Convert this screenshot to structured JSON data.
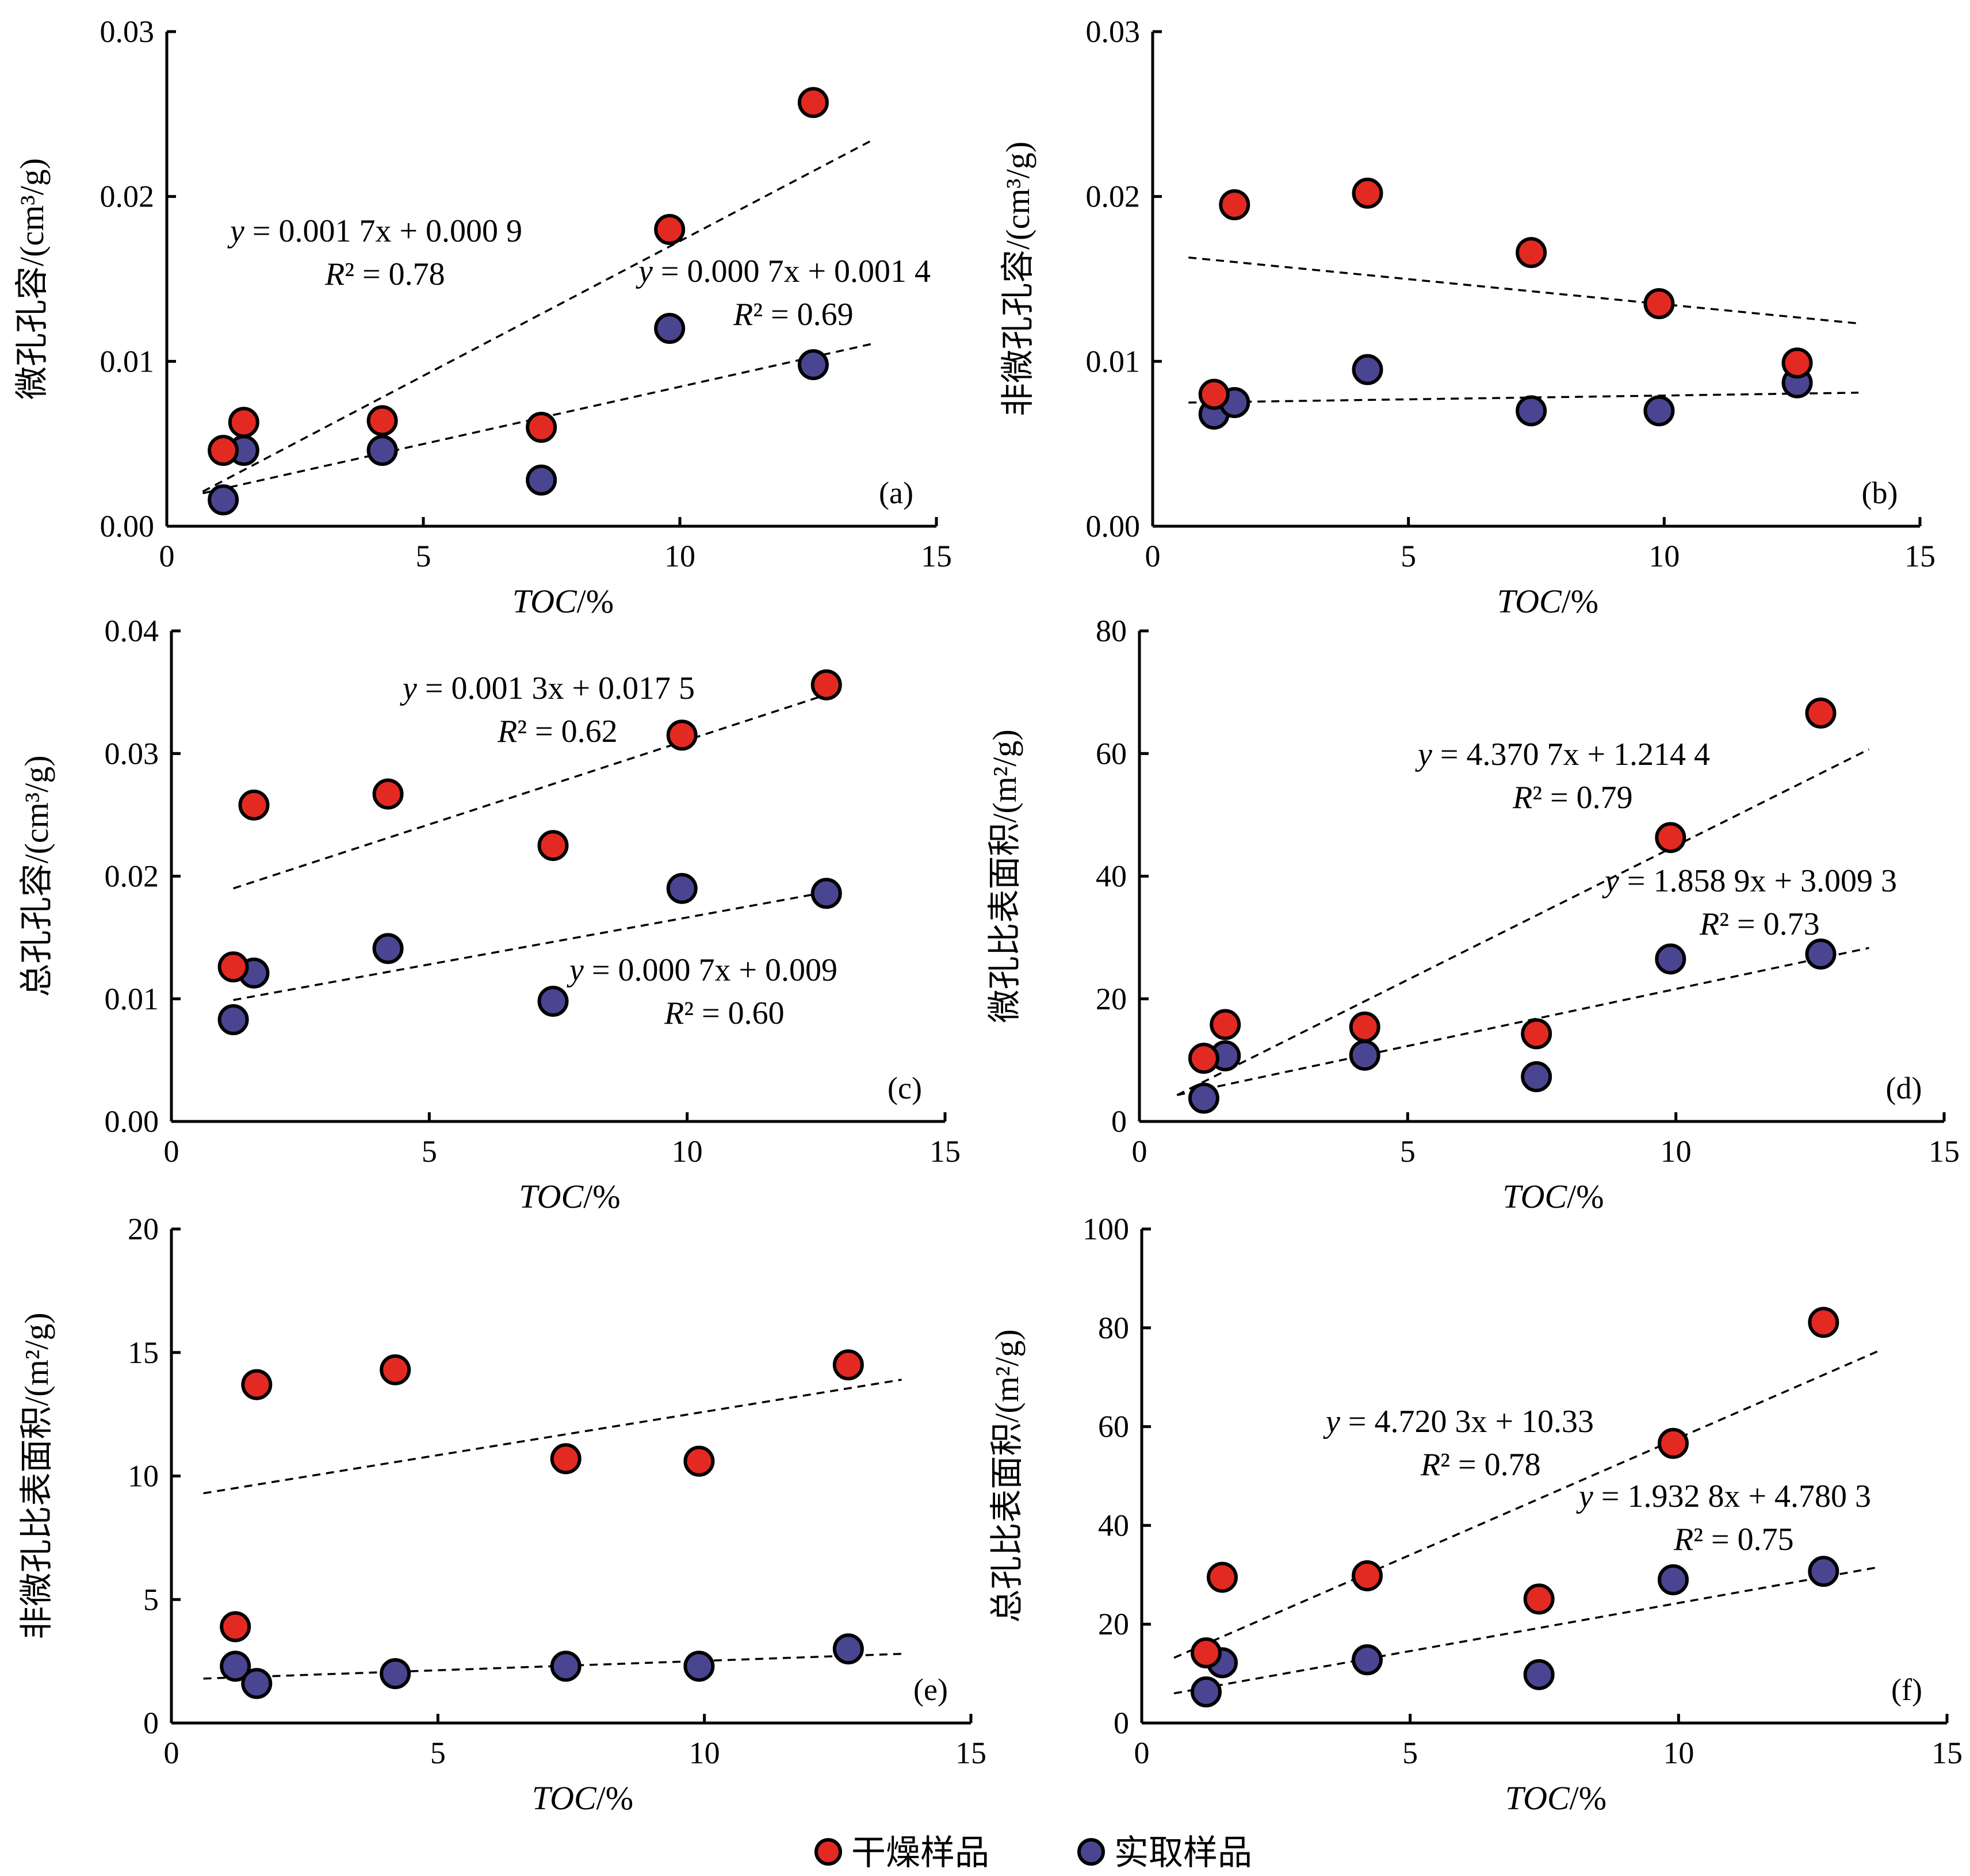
{
  "colors": {
    "dry": "#e32a22",
    "fresh": "#4a4591"
  },
  "legend": {
    "items": [
      {
        "label": "干燥样品",
        "color": "#e32a22"
      },
      {
        "label": "实取样品",
        "color": "#4a4591"
      }
    ]
  },
  "chart_data": [
    {
      "type": "scatter",
      "panel": "(a)",
      "xlabel": "TOC/%",
      "ylabel": "微孔孔容/(cm³/g)",
      "xlim": [
        0,
        15
      ],
      "ylim": [
        0,
        0.03
      ],
      "xticks": [
        0,
        5,
        10,
        15
      ],
      "yticks": [
        0,
        0.01,
        0.02,
        0.03
      ],
      "ytick_labels": [
        "0.00",
        "0.01",
        "0.02",
        "0.03"
      ],
      "series": [
        {
          "name": "干燥样品",
          "x": [
            1.1,
            1.5,
            4.2,
            7.3,
            9.8,
            12.6
          ],
          "y": [
            0.0046,
            0.0063,
            0.0064,
            0.006,
            0.018,
            0.0257
          ]
        },
        {
          "name": "实取样品",
          "x": [
            1.1,
            1.5,
            4.2,
            7.3,
            9.8,
            12.6
          ],
          "y": [
            0.0016,
            0.0046,
            0.0046,
            0.0028,
            0.012,
            0.0098
          ]
        }
      ],
      "annotations": [
        {
          "series": "干燥样品",
          "equation": "y = 0.001 7x + 0.000 9",
          "r2": "R² = 0.78"
        },
        {
          "series": "实取样品",
          "equation": "y = 0.000 7x + 0.001 4",
          "r2": "R² = 0.69"
        }
      ],
      "trendlines": [
        {
          "series": "干燥样品",
          "x": [
            0.7,
            13.8
          ],
          "y": [
            0.0021,
            0.0235
          ]
        },
        {
          "series": "实取样品",
          "x": [
            0.7,
            13.8
          ],
          "y": [
            0.002,
            0.0111
          ]
        }
      ]
    },
    {
      "type": "scatter",
      "panel": "(b)",
      "xlabel": "TOC/%",
      "ylabel": "非微孔孔容/(cm³/g)",
      "xlim": [
        0,
        15
      ],
      "ylim": [
        0,
        0.03
      ],
      "xticks": [
        0,
        5,
        10,
        15
      ],
      "yticks": [
        0,
        0.01,
        0.02,
        0.03
      ],
      "ytick_labels": [
        "0.00",
        "0.01",
        "0.02",
        "0.03"
      ],
      "series": [
        {
          "name": "干燥样品",
          "x": [
            1.2,
            1.6,
            4.2,
            7.4,
            9.9,
            12.6
          ],
          "y": [
            0.008,
            0.0195,
            0.0202,
            0.0166,
            0.0135,
            0.0099
          ]
        },
        {
          "name": "实取样品",
          "x": [
            1.2,
            1.6,
            4.2,
            7.4,
            9.9,
            12.6
          ],
          "y": [
            0.0068,
            0.0075,
            0.0095,
            0.007,
            0.007,
            0.0087
          ]
        }
      ],
      "annotations": [],
      "trendlines": [
        {
          "series": "干燥样品",
          "x": [
            0.7,
            13.8
          ],
          "y": [
            0.0163,
            0.0123
          ]
        },
        {
          "series": "实取样品",
          "x": [
            0.7,
            13.8
          ],
          "y": [
            0.0075,
            0.0081
          ]
        }
      ]
    },
    {
      "type": "scatter",
      "panel": "(c)",
      "xlabel": "TOC/%",
      "ylabel": "总孔孔容/(cm³/g)",
      "xlim": [
        0,
        15
      ],
      "ylim": [
        0,
        0.04
      ],
      "xticks": [
        0,
        5,
        10,
        15
      ],
      "yticks": [
        0,
        0.01,
        0.02,
        0.03,
        0.04
      ],
      "ytick_labels": [
        "0.00",
        "0.01",
        "0.02",
        "0.03",
        "0.04"
      ],
      "series": [
        {
          "name": "干燥样品",
          "x": [
            1.2,
            1.6,
            4.2,
            7.4,
            9.9,
            12.7
          ],
          "y": [
            0.0126,
            0.0258,
            0.0267,
            0.0225,
            0.0315,
            0.0356
          ]
        },
        {
          "name": "实取样品",
          "x": [
            1.2,
            1.6,
            4.2,
            7.4,
            9.9,
            12.7
          ],
          "y": [
            0.0083,
            0.0121,
            0.0141,
            0.0098,
            0.019,
            0.0186
          ]
        }
      ],
      "annotations": [
        {
          "series": "干燥样品",
          "equation": "y = 0.001 3x + 0.017 5",
          "r2": "R² = 0.62"
        },
        {
          "series": "实取样品",
          "equation": "y = 0.000 7x + 0.009",
          "r2": "R² = 0.60"
        }
      ],
      "trendlines": [
        {
          "series": "干燥样品",
          "x": [
            1.2,
            12.7
          ],
          "y": [
            0.019,
            0.0348
          ]
        },
        {
          "series": "实取样品",
          "x": [
            1.2,
            12.7
          ],
          "y": [
            0.0099,
            0.0187
          ]
        }
      ]
    },
    {
      "type": "scatter",
      "panel": "(d)",
      "xlabel": "TOC/%",
      "ylabel": "微孔比表面积/(m²/g)",
      "xlim": [
        0,
        15
      ],
      "ylim": [
        0,
        80
      ],
      "xticks": [
        0,
        5,
        10,
        15
      ],
      "yticks": [
        0,
        20,
        40,
        60,
        80
      ],
      "ytick_labels": [
        "0",
        "20",
        "40",
        "60",
        "80"
      ],
      "series": [
        {
          "name": "干燥样品",
          "x": [
            1.2,
            1.6,
            4.2,
            7.4,
            9.9,
            12.7
          ],
          "y": [
            10.3,
            15.8,
            15.4,
            14.3,
            46.3,
            66.6
          ]
        },
        {
          "name": "实取样品",
          "x": [
            1.2,
            1.6,
            4.2,
            7.4,
            9.9,
            12.7
          ],
          "y": [
            3.8,
            10.7,
            10.8,
            7.3,
            26.5,
            27.3
          ]
        }
      ],
      "annotations": [
        {
          "series": "干燥样品",
          "equation": "y = 4.370 7x + 1.214 4",
          "r2": "R² = 0.79"
        },
        {
          "series": "实取样品",
          "equation": "y = 1.858 9x + 3.009 3",
          "r2": "R² = 0.73"
        }
      ],
      "trendlines": [
        {
          "series": "干燥样品",
          "x": [
            0.7,
            13.6
          ],
          "y": [
            4.3,
            60.7
          ]
        },
        {
          "series": "实取样品",
          "x": [
            0.7,
            13.6
          ],
          "y": [
            4.3,
            28.3
          ]
        }
      ]
    },
    {
      "type": "scatter",
      "panel": "(e)",
      "xlabel": "TOC/%",
      "ylabel": "非微孔比表面积/(m²/g)",
      "xlim": [
        0,
        15
      ],
      "ylim": [
        0,
        20
      ],
      "xticks": [
        0,
        5,
        10,
        15
      ],
      "yticks": [
        0,
        5,
        10,
        15,
        20
      ],
      "ytick_labels": [
        "0",
        "5",
        "10",
        "15",
        "20"
      ],
      "series": [
        {
          "name": "干燥样品",
          "x": [
            1.2,
            1.6,
            4.2,
            7.4,
            9.9,
            12.7
          ],
          "y": [
            3.9,
            13.7,
            14.3,
            10.7,
            10.6,
            14.5
          ]
        },
        {
          "name": "实取样品",
          "x": [
            1.2,
            1.6,
            4.2,
            7.4,
            9.9,
            12.7
          ],
          "y": [
            2.3,
            1.6,
            2.0,
            2.3,
            2.3,
            3.0
          ]
        }
      ],
      "annotations": [],
      "trendlines": [
        {
          "series": "干燥样品",
          "x": [
            0.6,
            13.7
          ],
          "y": [
            9.3,
            13.9
          ]
        },
        {
          "series": "实取样品",
          "x": [
            0.6,
            13.7
          ],
          "y": [
            1.8,
            2.8
          ]
        }
      ]
    },
    {
      "type": "scatter",
      "panel": "(f)",
      "xlabel": "TOC/%",
      "ylabel": "总孔比表面积/(m²/g)",
      "xlim": [
        0,
        15
      ],
      "ylim": [
        0,
        100
      ],
      "xticks": [
        0,
        5,
        10,
        15
      ],
      "yticks": [
        0,
        20,
        40,
        60,
        80,
        100
      ],
      "ytick_labels": [
        "0",
        "20",
        "40",
        "60",
        "80",
        "100"
      ],
      "series": [
        {
          "name": "干燥样品",
          "x": [
            1.2,
            1.5,
            4.2,
            7.4,
            9.9,
            12.7
          ],
          "y": [
            14.2,
            29.5,
            29.8,
            25.1,
            56.6,
            81.1
          ]
        },
        {
          "name": "实取样品",
          "x": [
            1.2,
            1.5,
            4.2,
            7.4,
            9.9,
            12.7
          ],
          "y": [
            6.3,
            12.2,
            12.8,
            9.8,
            29.0,
            30.7
          ]
        }
      ],
      "annotations": [
        {
          "series": "干燥样品",
          "equation": "y = 4.720 3x + 10.33",
          "r2": "R² = 0.78"
        },
        {
          "series": "实取样品",
          "equation": "y = 1.932 8x + 4.780 3",
          "r2": "R² = 0.75"
        }
      ],
      "trendlines": [
        {
          "series": "干燥样品",
          "x": [
            0.6,
            13.7
          ],
          "y": [
            13.2,
            75.2
          ]
        },
        {
          "series": "实取样品",
          "x": [
            0.6,
            13.7
          ],
          "y": [
            6.0,
            31.5
          ]
        }
      ]
    }
  ]
}
